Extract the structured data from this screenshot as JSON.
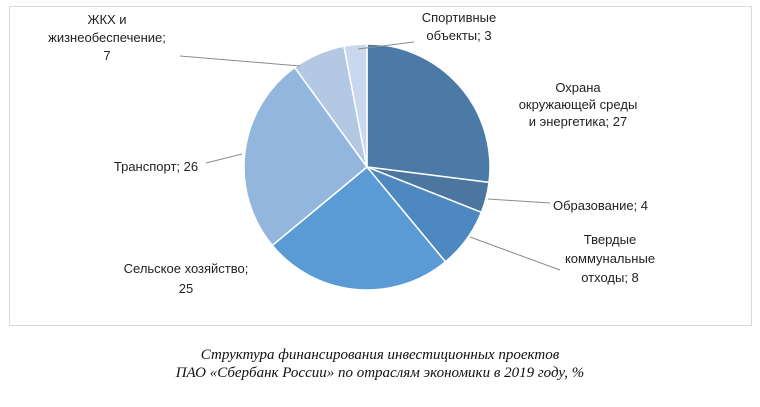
{
  "chart_data": {
    "type": "pie",
    "slices": [
      {
        "label_lines": [
          "Охрана",
          "окружающей среды",
          "и энергетика; 27"
        ],
        "value": 27,
        "color": "#4c7aa6"
      },
      {
        "label_lines": [
          "Образование; 4"
        ],
        "value": 4,
        "color": "#4a76a0"
      },
      {
        "label_lines": [
          "Твердые",
          "коммунальные",
          "отходы; 8"
        ],
        "value": 8,
        "color": "#4d88c0"
      },
      {
        "label_lines": [
          "Сельское хозяйство;",
          "25"
        ],
        "value": 25,
        "color": "#5b9bd5"
      },
      {
        "label_lines": [
          "Транспорт; 26"
        ],
        "value": 26,
        "color": "#93b6dd"
      },
      {
        "label_lines": [
          "ЖКХ и",
          "жизнеобеспечение;",
          "7"
        ],
        "value": 7,
        "color": "#b3c9e3"
      },
      {
        "label_lines": [
          "Спортивные",
          "объекты; 3"
        ],
        "value": 3,
        "color": "#c9d8ec"
      }
    ],
    "legend": "none"
  },
  "caption": {
    "line1": "Структура финансирования инвестиционных проектов",
    "line2": "ПАО «Сбербанк России» по отраслям экономики в 2019 году, %"
  }
}
